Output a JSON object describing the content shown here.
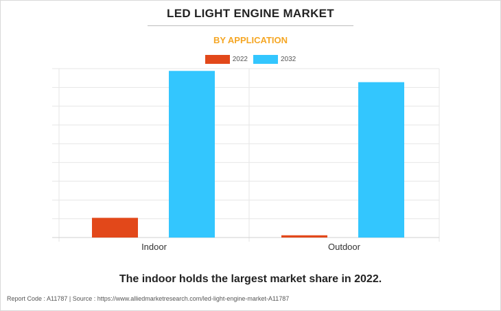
{
  "header": {
    "title": "LED LIGHT ENGINE MARKET",
    "subtitle": "BY APPLICATION"
  },
  "colors": {
    "series_2022": "#e2481a",
    "series_2032": "#33c6fe",
    "subtitle": "#f5a623",
    "grid": "#e6e6e6"
  },
  "chart_data": {
    "type": "bar",
    "title": "LED LIGHT ENGINE MARKET",
    "subtitle": "BY APPLICATION",
    "categories": [
      "Indoor",
      "Outdoor"
    ],
    "series": [
      {
        "name": "2022",
        "values": [
          10.5,
          1.2
        ]
      },
      {
        "name": "2032",
        "values": [
          88.8,
          82.8
        ]
      }
    ],
    "ylim": [
      0,
      90
    ],
    "gridlines": 9,
    "xlabel": "",
    "ylabel": "",
    "legend": "top-center",
    "grid": true
  },
  "footer": {
    "note": "The indoor holds the largest market share in 2022.",
    "source": "Report Code : A11787  |  Source : https://www.alliedmarketresearch.com/led-light-engine-market-A11787"
  }
}
